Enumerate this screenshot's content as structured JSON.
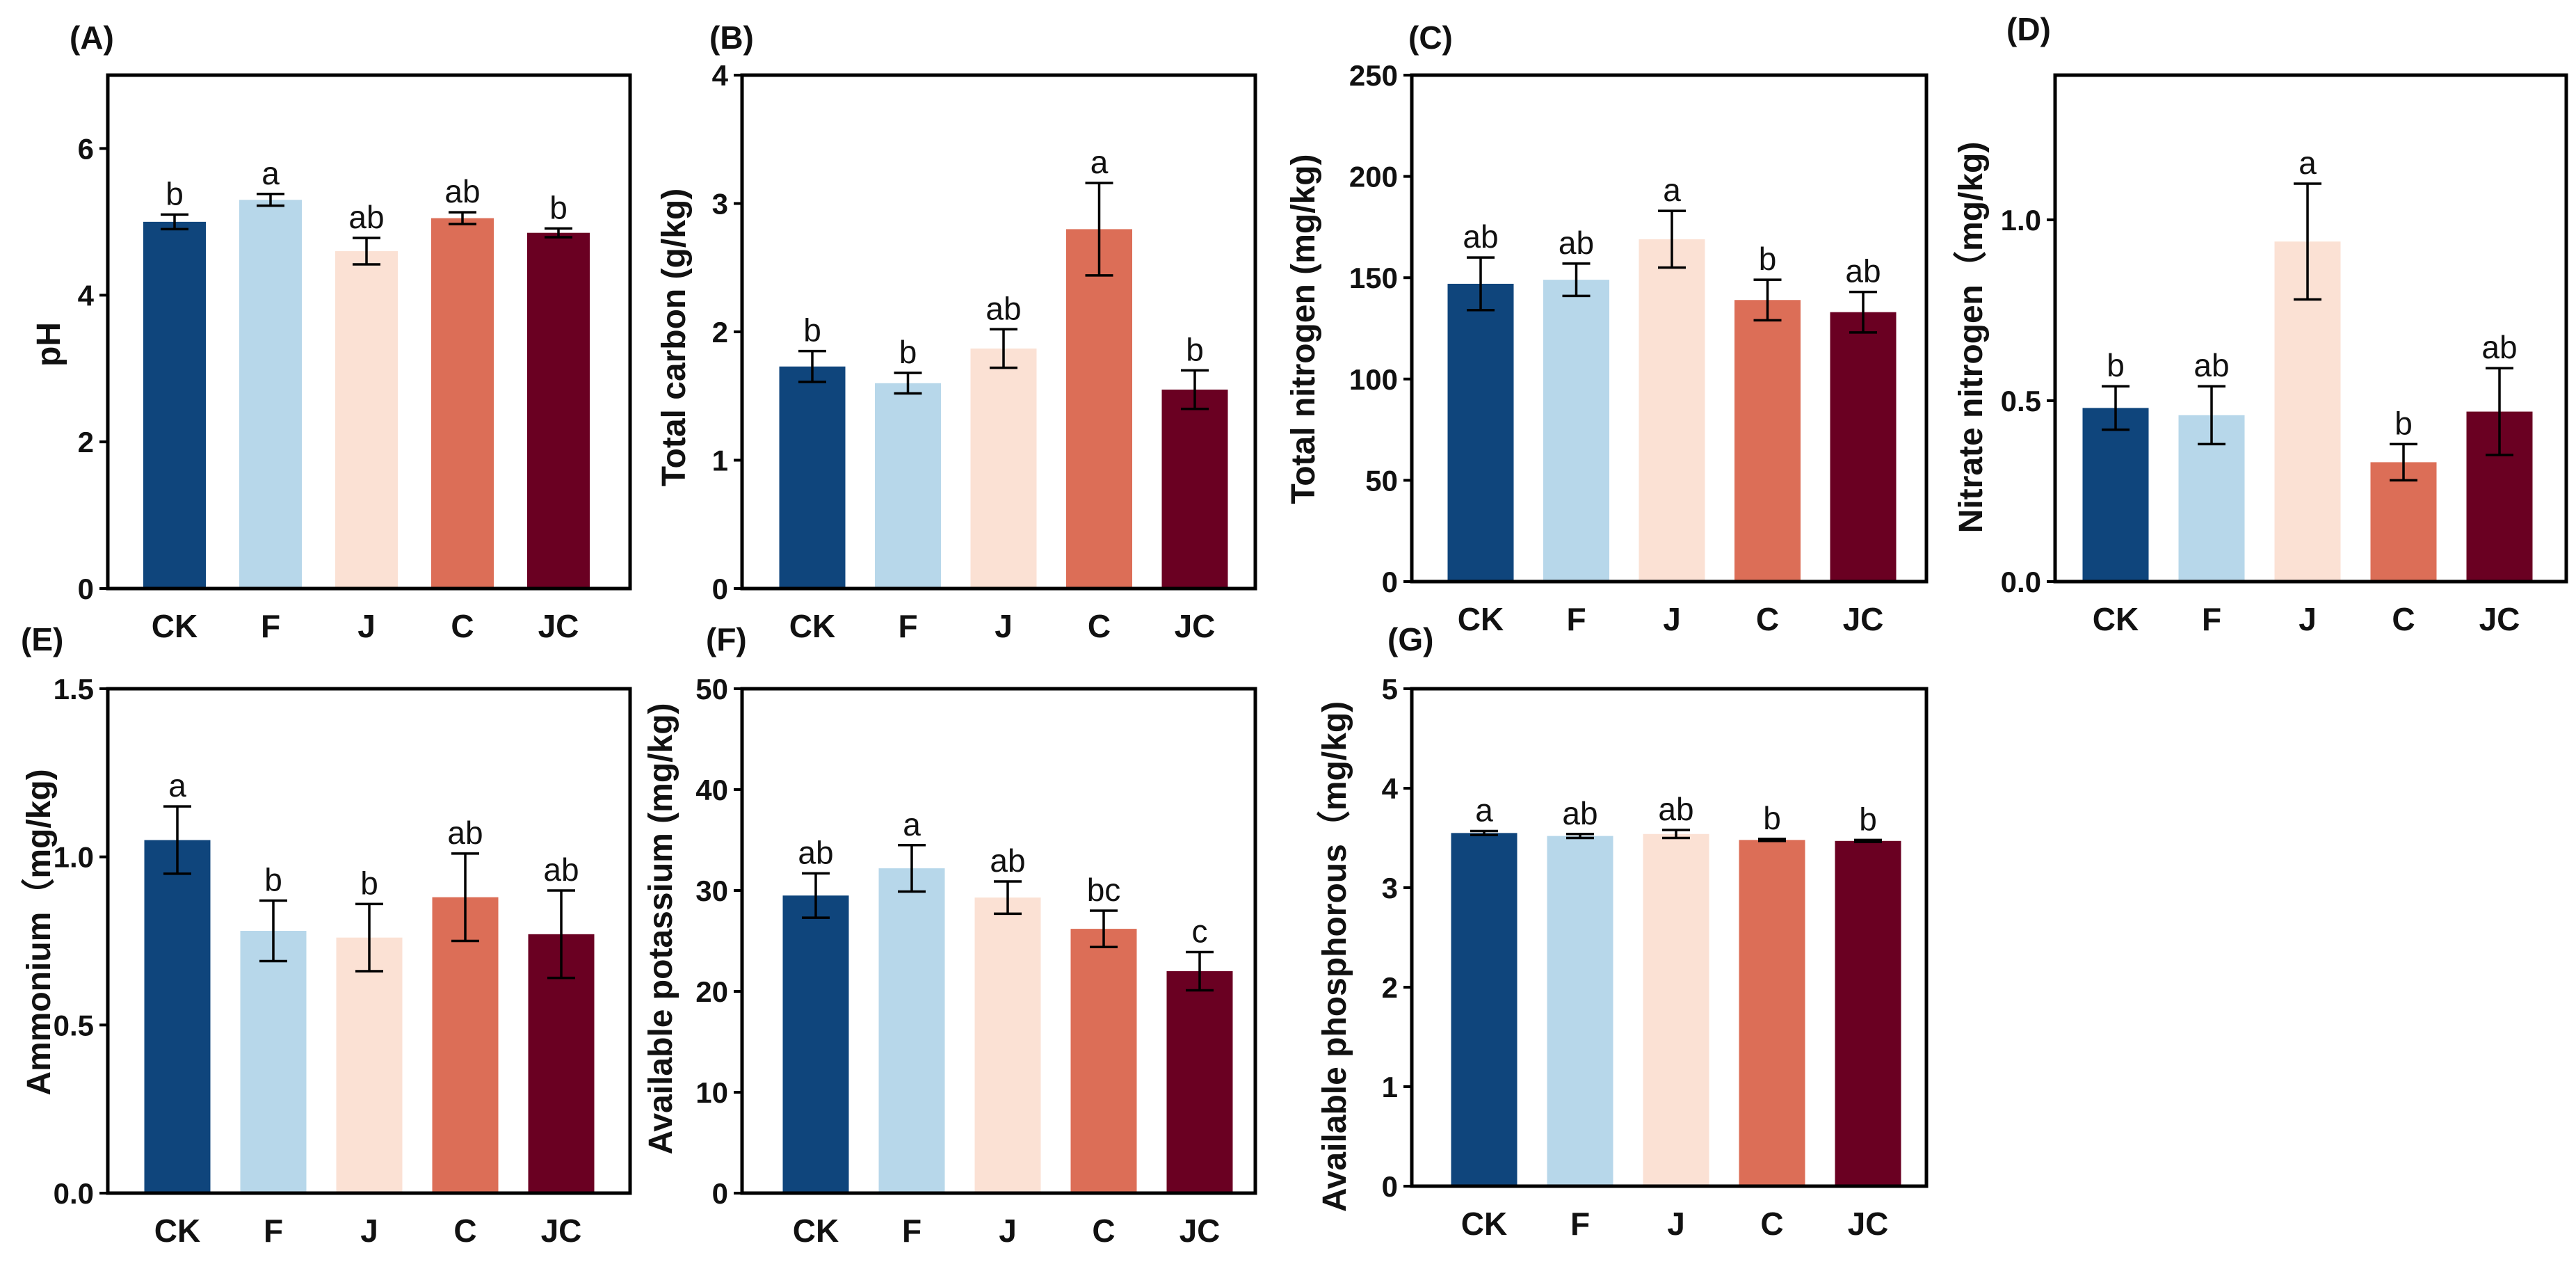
{
  "categories": [
    "CK",
    "F",
    "J",
    "C",
    "JC"
  ],
  "colors": [
    "#0f457c",
    "#b7d7ea",
    "#fbe1d4",
    "#dc6e57",
    "#6a0022"
  ],
  "chart_data": [
    {
      "type": "bar",
      "panel": "(A)",
      "title": "",
      "xlabel": "",
      "ylabel": "pH",
      "categories": [
        "CK",
        "F",
        "J",
        "C",
        "JC"
      ],
      "values": [
        5.0,
        5.3,
        4.6,
        5.05,
        4.85
      ],
      "errors": [
        0.1,
        0.08,
        0.18,
        0.08,
        0.06
      ],
      "significance": [
        "b",
        "a",
        "ab",
        "ab",
        "b"
      ],
      "ylim": [
        0,
        7
      ],
      "yticks": [
        0,
        2,
        4,
        6
      ],
      "ytick_labels": [
        "0",
        "2",
        "4",
        "6"
      ]
    },
    {
      "type": "bar",
      "panel": "(B)",
      "title": "",
      "xlabel": "",
      "ylabel": "Total carbon (g/kg)",
      "categories": [
        "CK",
        "F",
        "J",
        "C",
        "JC"
      ],
      "values": [
        1.73,
        1.6,
        1.87,
        2.8,
        1.55
      ],
      "errors": [
        0.12,
        0.08,
        0.15,
        0.36,
        0.15
      ],
      "significance": [
        "b",
        "b",
        "ab",
        "a",
        "b"
      ],
      "ylim": [
        0,
        4
      ],
      "yticks": [
        0,
        1,
        2,
        3,
        4
      ],
      "ytick_labels": [
        "0",
        "1",
        "2",
        "3",
        "4"
      ]
    },
    {
      "type": "bar",
      "panel": "(C)",
      "title": "",
      "xlabel": "",
      "ylabel": "Total nitrogen (mg/kg)",
      "categories": [
        "CK",
        "F",
        "J",
        "C",
        "JC"
      ],
      "values": [
        147,
        149,
        169,
        139,
        133
      ],
      "errors": [
        13,
        8,
        14,
        10,
        10
      ],
      "significance": [
        "ab",
        "ab",
        "a",
        "b",
        "ab"
      ],
      "ylim": [
        0,
        250
      ],
      "yticks": [
        0,
        50,
        100,
        150,
        200,
        250
      ],
      "ytick_labels": [
        "0",
        "50",
        "100",
        "150",
        "200",
        "250"
      ]
    },
    {
      "type": "bar",
      "panel": "(D)",
      "title": "",
      "xlabel": "",
      "ylabel": "Nitrate nitrogen（mg/kg)",
      "categories": [
        "CK",
        "F",
        "J",
        "C",
        "JC"
      ],
      "values": [
        0.48,
        0.46,
        0.94,
        0.33,
        0.47
      ],
      "errors": [
        0.06,
        0.08,
        0.16,
        0.05,
        0.12
      ],
      "significance": [
        "b",
        "ab",
        "a",
        "b",
        "ab"
      ],
      "ylim": [
        0,
        1.4
      ],
      "yticks": [
        0,
        0.5,
        1.0
      ],
      "ytick_labels": [
        "0.0",
        "0.5",
        "1.0"
      ]
    },
    {
      "type": "bar",
      "panel": "(E)",
      "title": "",
      "xlabel": "",
      "ylabel": "Ammonium（mg/kg)",
      "categories": [
        "CK",
        "F",
        "J",
        "C",
        "JC"
      ],
      "values": [
        1.05,
        0.78,
        0.76,
        0.88,
        0.77
      ],
      "errors": [
        0.1,
        0.09,
        0.1,
        0.13,
        0.13
      ],
      "significance": [
        "a",
        "b",
        "b",
        "ab",
        "ab"
      ],
      "ylim": [
        0,
        1.5
      ],
      "yticks": [
        0,
        0.5,
        1.0,
        1.5
      ],
      "ytick_labels": [
        "0.0",
        "0.5",
        "1.0",
        "1.5"
      ]
    },
    {
      "type": "bar",
      "panel": "(F)",
      "title": "",
      "xlabel": "",
      "ylabel": "Available potassium (mg/kg)",
      "categories": [
        "CK",
        "F",
        "J",
        "C",
        "JC"
      ],
      "values": [
        29.5,
        32.2,
        29.3,
        26.2,
        22.0
      ],
      "errors": [
        2.2,
        2.3,
        1.6,
        1.8,
        1.9
      ],
      "significance": [
        "ab",
        "a",
        "ab",
        "bc",
        "c"
      ],
      "ylim": [
        0,
        50
      ],
      "yticks": [
        0,
        10,
        20,
        30,
        40,
        50
      ],
      "ytick_labels": [
        "0",
        "10",
        "20",
        "30",
        "40",
        "50"
      ]
    },
    {
      "type": "bar",
      "panel": "(G)",
      "title": "",
      "xlabel": "",
      "ylabel": "Available phosphorous（mg/kg)",
      "categories": [
        "CK",
        "F",
        "J",
        "C",
        "JC"
      ],
      "values": [
        3.55,
        3.52,
        3.54,
        3.48,
        3.47
      ],
      "errors": [
        0.02,
        0.02,
        0.04,
        0.01,
        0.01
      ],
      "significance": [
        "a",
        "ab",
        "ab",
        "b",
        "b"
      ],
      "ylim": [
        0,
        5
      ],
      "yticks": [
        0,
        1,
        2,
        3,
        4,
        5
      ],
      "ytick_labels": [
        "0",
        "1",
        "2",
        "3",
        "4",
        "5"
      ]
    }
  ]
}
